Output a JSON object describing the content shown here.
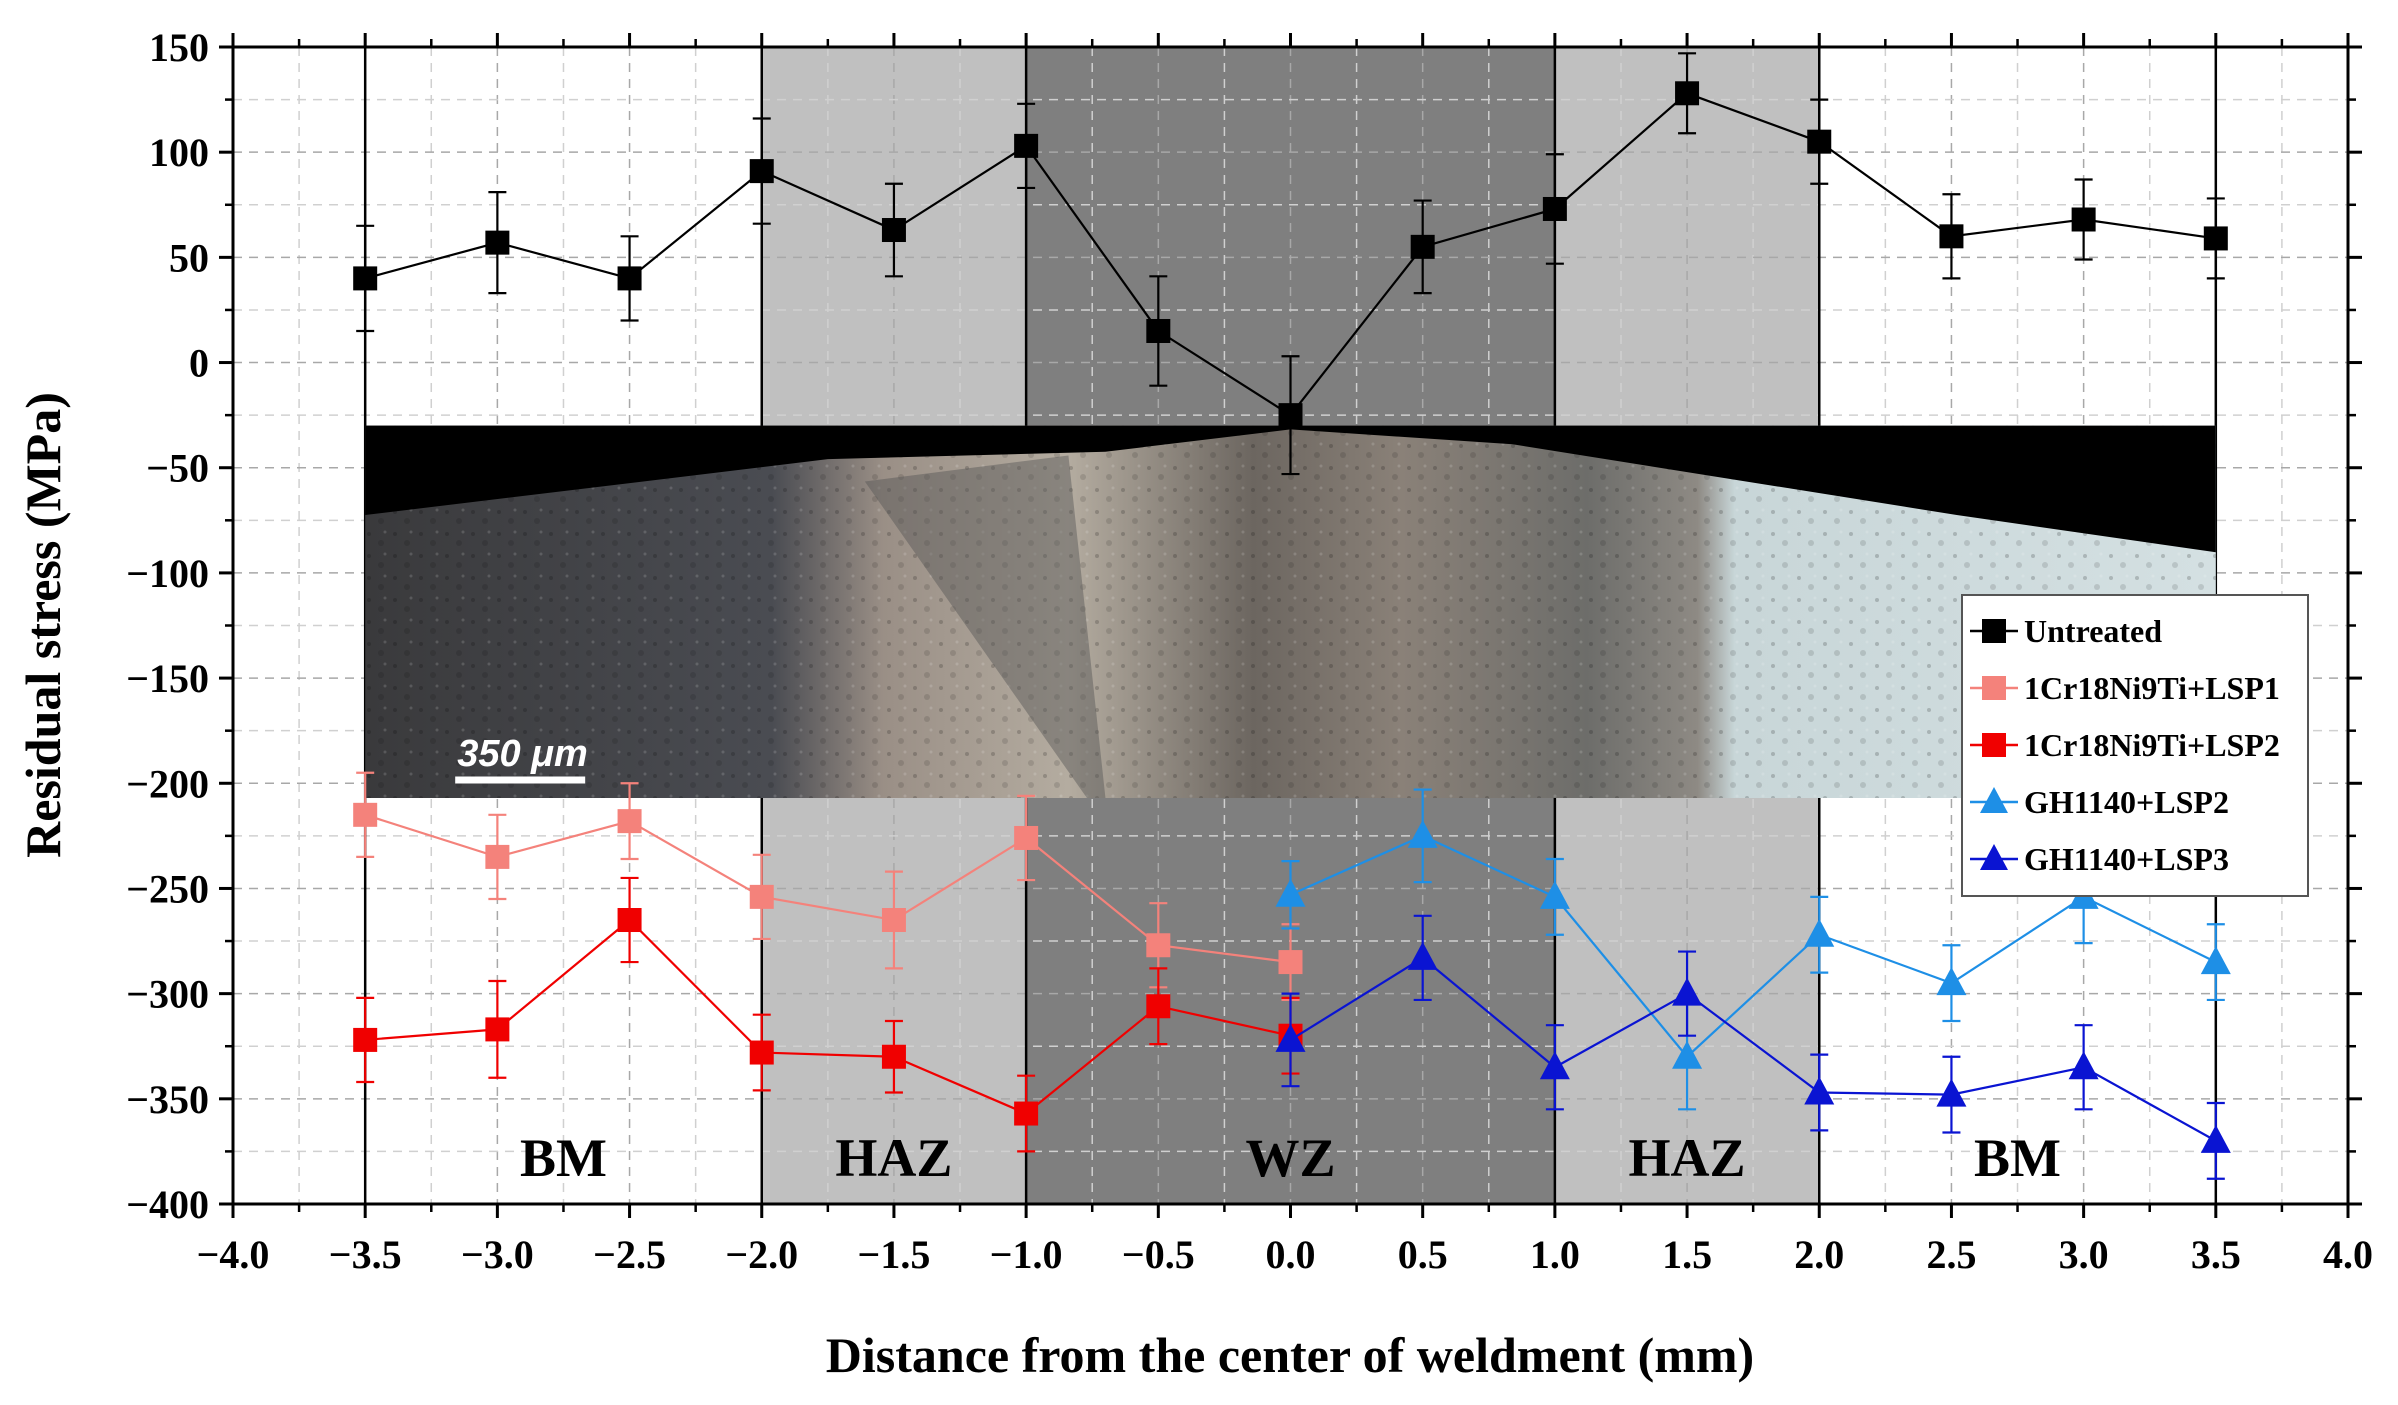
{
  "chart_data": {
    "type": "line",
    "xlabel": "Distance from the center of weldment (mm)",
    "ylabel": "Residual stress (MPa)",
    "xlim": [
      -4.0,
      4.0
    ],
    "ylim": [
      -400,
      150
    ],
    "x_ticks": [
      -4.0,
      -3.5,
      -3.0,
      -2.5,
      -2.0,
      -1.5,
      -1.0,
      -0.5,
      0.0,
      0.5,
      1.0,
      1.5,
      2.0,
      2.5,
      3.0,
      3.5,
      4.0
    ],
    "x_tick_labels": [
      "−4.0",
      "−3.5",
      "−3.0",
      "−2.5",
      "−2.0",
      "−1.5",
      "−1.0",
      "−0.5",
      "0.0",
      "0.5",
      "1.0",
      "1.5",
      "2.0",
      "2.5",
      "3.0",
      "3.5",
      "4.0"
    ],
    "y_ticks": [
      150,
      100,
      50,
      0,
      -50,
      -100,
      -150,
      -200,
      -250,
      -300,
      -350,
      -400
    ],
    "y_tick_labels": [
      "150",
      "100",
      "50",
      "0",
      "−50",
      "−100",
      "−150",
      "−200",
      "−250",
      "−300",
      "−350",
      "−400"
    ],
    "grid": true,
    "legend_position": "right",
    "regions": [
      {
        "label": "BM",
        "x0": -3.5,
        "x1": -2.0,
        "color": "#ffffff"
      },
      {
        "label": "HAZ",
        "x0": -2.0,
        "x1": -1.0,
        "color": "#c0c0c0"
      },
      {
        "label": "WZ",
        "x0": -1.0,
        "x1": 1.0,
        "color": "#7f7f7f"
      },
      {
        "label": "HAZ",
        "x0": 1.0,
        "x1": 2.0,
        "color": "#c0c0c0"
      },
      {
        "label": "BM",
        "x0": 2.0,
        "x1": 3.5,
        "color": "#ffffff"
      }
    ],
    "inset_image": {
      "scale_bar_label": "350 μm",
      "x0": -3.5,
      "x1": 3.5,
      "y_top": -30,
      "y_bottom": -207
    },
    "series": [
      {
        "name": "Untreated",
        "color": "#000000",
        "marker": "square",
        "x": [
          -3.5,
          -3.0,
          -2.5,
          -2.0,
          -1.5,
          -1.0,
          -0.5,
          0.0,
          0.5,
          1.0,
          1.5,
          2.0,
          2.5,
          3.0,
          3.5
        ],
        "y": [
          40,
          57,
          40,
          91,
          63,
          103,
          15,
          -25,
          55,
          73,
          128,
          105,
          60,
          68,
          59
        ],
        "err": [
          25,
          24,
          20,
          25,
          22,
          20,
          26,
          28,
          22,
          26,
          19,
          20,
          20,
          19,
          19
        ]
      },
      {
        "name": "1Cr18Ni9Ti+LSP1",
        "color": "#f4827b",
        "marker": "square",
        "x": [
          -3.5,
          -3.0,
          -2.5,
          -2.0,
          -1.5,
          -1.0,
          -0.5,
          0.0
        ],
        "y": [
          -215,
          -235,
          -218,
          -254,
          -265,
          -226,
          -277,
          -285
        ],
        "err": [
          20,
          20,
          18,
          20,
          23,
          20,
          20,
          18
        ]
      },
      {
        "name": "1Cr18Ni9Ti+LSP2",
        "color": "#f00000",
        "marker": "square",
        "x": [
          -3.5,
          -3.0,
          -2.5,
          -2.0,
          -1.5,
          -1.0,
          -0.5,
          0.0
        ],
        "y": [
          -322,
          -317,
          -265,
          -328,
          -330,
          -357,
          -306,
          -320
        ],
        "err": [
          20,
          23,
          20,
          18,
          17,
          18,
          18,
          18
        ]
      },
      {
        "name": "GH1140+LSP2",
        "color": "#1e8fe6",
        "marker": "triangle",
        "x": [
          0.0,
          0.5,
          1.0,
          1.5,
          2.0,
          2.5,
          3.0,
          3.5
        ],
        "y": [
          -253,
          -225,
          -254,
          -330,
          -272,
          -295,
          -254,
          -285
        ],
        "err": [
          16,
          22,
          18,
          25,
          18,
          18,
          22,
          18
        ]
      },
      {
        "name": "GH1140+LSP3",
        "color": "#0a14d2",
        "marker": "triangle",
        "x": [
          0.0,
          0.5,
          1.0,
          1.5,
          2.0,
          2.5,
          3.0,
          3.5
        ],
        "y": [
          -322,
          -283,
          -335,
          -300,
          -347,
          -348,
          -335,
          -370
        ],
        "err": [
          22,
          20,
          20,
          20,
          18,
          18,
          20,
          18
        ]
      }
    ]
  }
}
